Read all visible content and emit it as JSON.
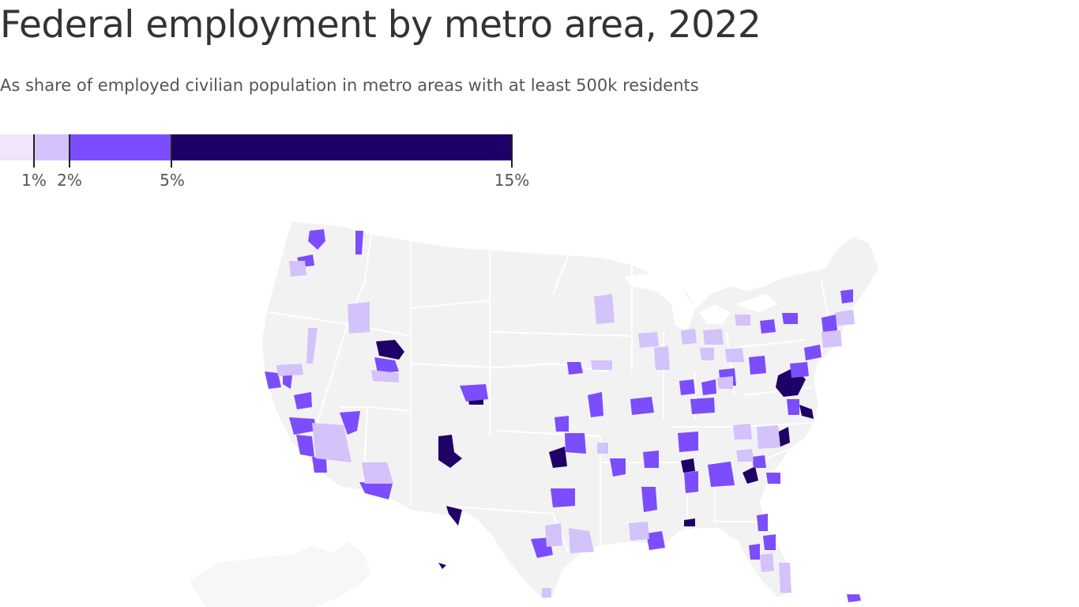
{
  "title": "Federal employment by metro area, 2022",
  "subtitle": "As share of employed civilian population in metro areas with at least 500k residents",
  "legend": {
    "bins": [
      {
        "from": 0,
        "to": 1,
        "color": "#f1e4fb"
      },
      {
        "from": 1,
        "to": 2,
        "color": "#d4c2fb"
      },
      {
        "from": 2,
        "to": 5,
        "color": "#7b4dfc"
      },
      {
        "from": 5,
        "to": 15,
        "color": "#1f0066"
      }
    ],
    "ticks": [
      {
        "value": 1,
        "label": "1%"
      },
      {
        "value": 2,
        "label": "2%"
      },
      {
        "value": 5,
        "label": "5%"
      },
      {
        "value": 15,
        "label": "15%"
      }
    ]
  },
  "colors": {
    "land": "#f2f2f2",
    "state_border": "#ffffff",
    "below_1": "#f1e4fb",
    "1_to_2": "#d4c2fb",
    "2_to_5": "#7b4dfc",
    "5_to_15": "#1f0066"
  }
}
